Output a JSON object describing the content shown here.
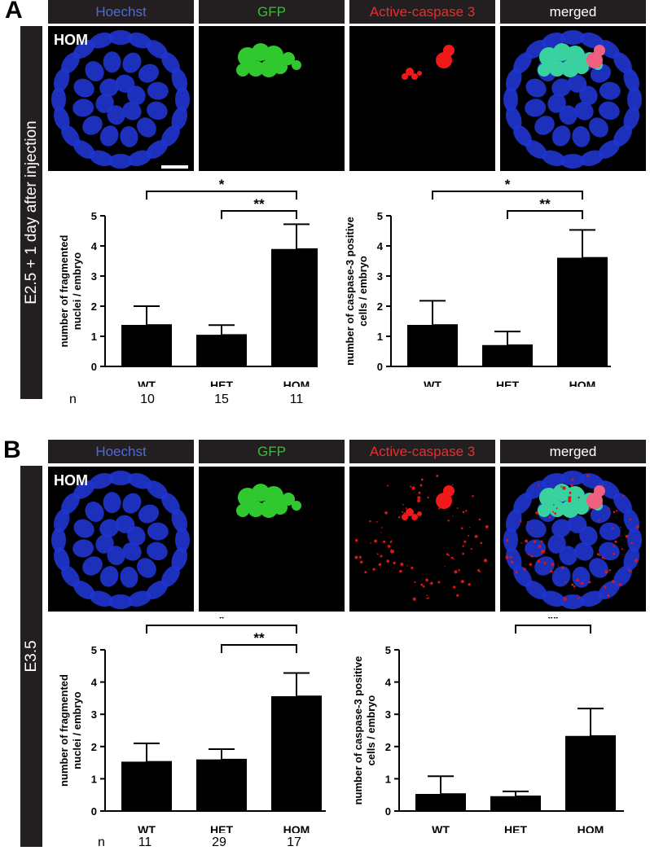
{
  "panels": [
    {
      "letter": "A",
      "condition": "E2.5 + 1 day after injection",
      "image_label": "HOM",
      "channels": [
        {
          "name": "Hoechst",
          "color": "#4d6bd8"
        },
        {
          "name": "GFP",
          "color": "#35c035"
        },
        {
          "name": "Active-caspase 3",
          "color": "#ee2b2b"
        },
        {
          "name": "merged",
          "color": "#ffffff"
        }
      ],
      "n_label": "n",
      "n_values": [
        "10",
        "15",
        "11"
      ],
      "charts": [
        {
          "type": "bar",
          "categories": [
            "WT",
            "HET",
            "HOM"
          ],
          "values": [
            1.4,
            1.07,
            3.92
          ],
          "errors": [
            0.6,
            0.3,
            0.8
          ],
          "ylabel": [
            "number of fragmented",
            "nuclei / embryo"
          ],
          "ylim": [
            0,
            5
          ],
          "yticks": [
            "0",
            "1",
            "2",
            "3",
            "4",
            "5"
          ],
          "significance": [
            {
              "from": 0,
              "to": 2,
              "label": "*"
            },
            {
              "from": 1,
              "to": 2,
              "label": "**"
            }
          ]
        },
        {
          "type": "bar",
          "categories": [
            "WT",
            "HET",
            "HOM"
          ],
          "values": [
            1.4,
            0.73,
            3.63
          ],
          "errors": [
            0.78,
            0.43,
            0.9
          ],
          "ylabel": [
            "number of caspase-3 positive",
            "cells / embryo"
          ],
          "ylim": [
            0,
            5
          ],
          "yticks": [
            "0",
            "1",
            "2",
            "3",
            "4",
            "5"
          ],
          "significance": [
            {
              "from": 0,
              "to": 2,
              "label": "*"
            },
            {
              "from": 1,
              "to": 2,
              "label": "**"
            }
          ]
        }
      ]
    },
    {
      "letter": "B",
      "condition": "E3.5",
      "image_label": "HOM",
      "channels": [
        {
          "name": "Hoechst",
          "color": "#4d6bd8"
        },
        {
          "name": "GFP",
          "color": "#35c035"
        },
        {
          "name": "Active-caspase 3",
          "color": "#ee2b2b"
        },
        {
          "name": "merged",
          "color": "#ffffff"
        }
      ],
      "n_label": "n",
      "n_values": [
        "11",
        "29",
        "17"
      ],
      "charts": [
        {
          "type": "bar",
          "categories": [
            "WT",
            "HET",
            "HOM"
          ],
          "values": [
            1.55,
            1.62,
            3.58
          ],
          "errors": [
            0.55,
            0.3,
            0.7
          ],
          "ylabel": [
            "number of fragmented",
            "nuclei / embryo"
          ],
          "ylim": [
            0,
            5
          ],
          "yticks": [
            "0",
            "1",
            "2",
            "3",
            "4",
            "5"
          ],
          "significance": [
            {
              "from": 0,
              "to": 2,
              "label": "*"
            },
            {
              "from": 1,
              "to": 2,
              "label": "**"
            }
          ]
        },
        {
          "type": "bar",
          "categories": [
            "WT",
            "HET",
            "HOM"
          ],
          "values": [
            0.55,
            0.48,
            2.35
          ],
          "errors": [
            0.53,
            0.13,
            0.83
          ],
          "ylabel": [
            "number of caspase-3 positive",
            "cells / embryo"
          ],
          "ylim": [
            0,
            5
          ],
          "yticks": [
            "0",
            "1",
            "2",
            "3",
            "4",
            "5"
          ],
          "significance": [
            {
              "from": 1,
              "to": 2,
              "label": "**"
            }
          ]
        }
      ]
    }
  ],
  "chart_data": [
    {
      "type": "bar",
      "categories": [
        "WT",
        "HET",
        "HOM"
      ],
      "values": [
        1.4,
        1.07,
        3.92
      ],
      "errors": [
        0.6,
        0.3,
        0.8
      ],
      "ylabel": "number of fragmented nuclei / embryo",
      "ylim": [
        0,
        5
      ]
    },
    {
      "type": "bar",
      "categories": [
        "WT",
        "HET",
        "HOM"
      ],
      "values": [
        1.4,
        0.73,
        3.63
      ],
      "errors": [
        0.78,
        0.43,
        0.9
      ],
      "ylabel": "number of caspase-3 positive cells / embryo",
      "ylim": [
        0,
        5
      ]
    },
    {
      "type": "bar",
      "categories": [
        "WT",
        "HET",
        "HOM"
      ],
      "values": [
        1.55,
        1.62,
        3.58
      ],
      "errors": [
        0.55,
        0.3,
        0.7
      ],
      "ylabel": "number of fragmented nuclei / embryo",
      "ylim": [
        0,
        5
      ]
    },
    {
      "type": "bar",
      "categories": [
        "WT",
        "HET",
        "HOM"
      ],
      "values": [
        0.55,
        0.48,
        2.35
      ],
      "errors": [
        0.53,
        0.13,
        0.83
      ],
      "ylabel": "number of caspase-3 positive cells / embryo",
      "ylim": [
        0,
        5
      ]
    }
  ]
}
